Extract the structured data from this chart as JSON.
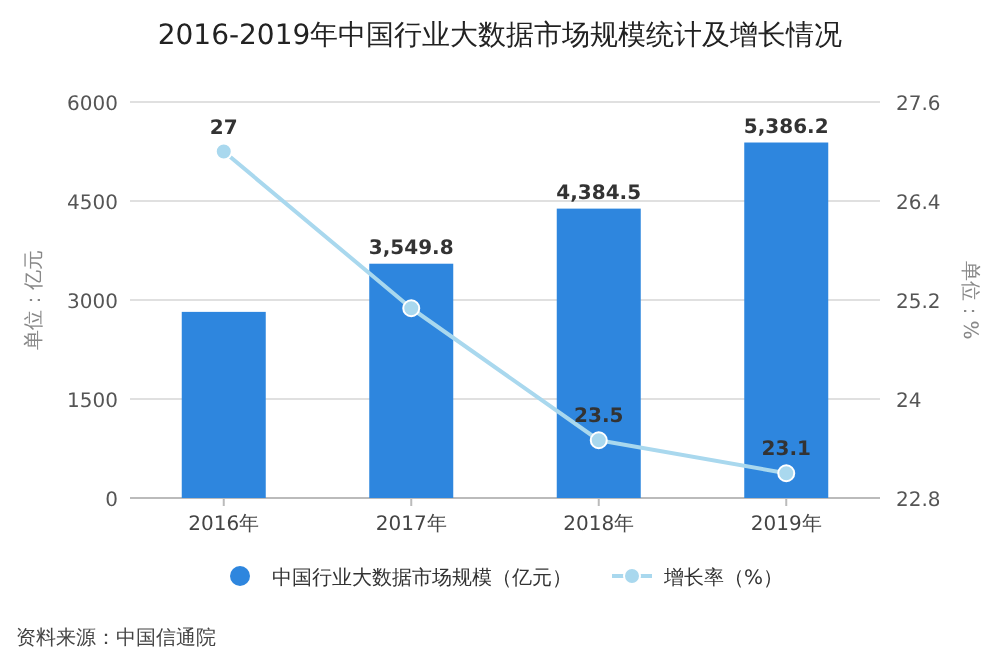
{
  "chart_data": {
    "type": "bar",
    "title": "2016-2019年中国行业大数据市场规模统计及增长情况",
    "categories": [
      "2016年",
      "2017年",
      "2018年",
      "2019年"
    ],
    "series": [
      {
        "name": "中国行业大数据市场规模（亿元）",
        "color": "#2e86de",
        "values": [
          2820,
          3549.8,
          4384.5,
          5386.2
        ],
        "value_labels": [
          null,
          "3,549.8",
          "4,384.5",
          "5,386.2"
        ]
      },
      {
        "name": "增长率（%）",
        "type": "line",
        "axis": "y2",
        "color": "#a9d8ee",
        "marker": "circle",
        "line_style": "solid",
        "values": [
          27,
          25.1,
          23.5,
          23.1
        ],
        "value_labels": [
          "27",
          null,
          "23.5",
          "23.1"
        ]
      }
    ],
    "ylabel": "单位：亿元",
    "y2label": "单位：%",
    "ylim": [
      0,
      6000
    ],
    "yticks": [
      0,
      1500,
      3000,
      4500,
      6000
    ],
    "y2lim": [
      22.8,
      27.6
    ],
    "y2ticks": [
      22.8,
      24,
      25.2,
      26.4,
      27.6
    ],
    "grid": "y",
    "legend": "bottom",
    "annotations": [
      "资料来源：中国信通院"
    ]
  }
}
